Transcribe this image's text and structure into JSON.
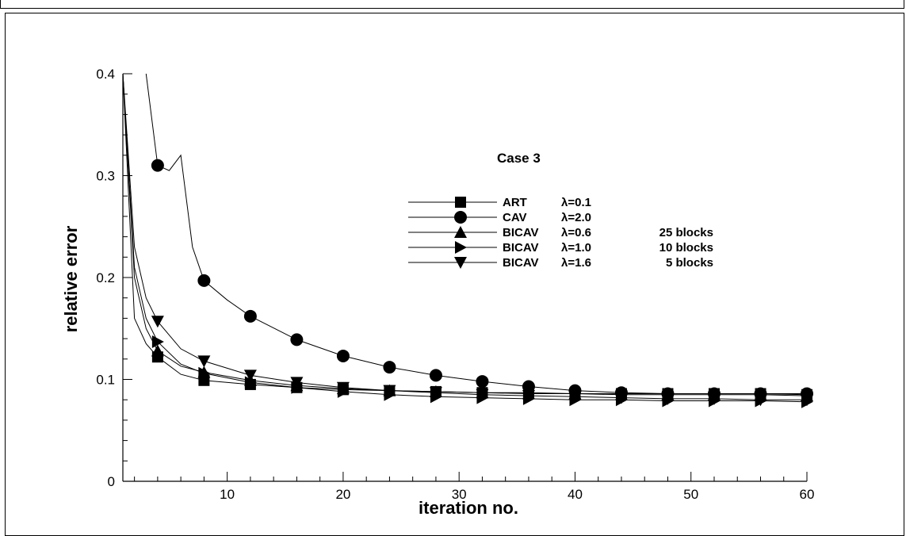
{
  "chart_data": {
    "type": "line",
    "title": "Case 3",
    "xlabel": "iteration no.",
    "ylabel": "relative error",
    "xlim": [
      1,
      60
    ],
    "ylim": [
      0,
      0.4
    ],
    "xticks": [
      "10",
      "20",
      "30",
      "40",
      "50",
      "60"
    ],
    "yticks": [
      "0",
      "0.1",
      "0.2",
      "0.3",
      "0.4"
    ],
    "grid": false,
    "legend_position": "center-right",
    "series": [
      {
        "name": "ART",
        "param": "λ=0.1",
        "blocks": "",
        "marker": "square",
        "x": [
          1,
          2,
          3,
          4,
          6,
          8,
          12,
          16,
          20,
          24,
          28,
          32,
          36,
          40,
          44,
          48,
          52,
          56,
          60
        ],
        "y": [
          0.4,
          0.16,
          0.135,
          0.122,
          0.105,
          0.099,
          0.095,
          0.092,
          0.09,
          0.089,
          0.088,
          0.087,
          0.087,
          0.086,
          0.086,
          0.086,
          0.086,
          0.086,
          0.085
        ]
      },
      {
        "name": "CAV",
        "param": "λ=2.0",
        "blocks": "",
        "marker": "circle",
        "x": [
          3,
          4,
          5,
          6,
          7,
          8,
          10,
          12,
          16,
          20,
          24,
          28,
          32,
          36,
          40,
          44,
          48,
          52,
          56,
          60
        ],
        "y": [
          0.4,
          0.31,
          0.305,
          0.32,
          0.23,
          0.197,
          0.178,
          0.162,
          0.139,
          0.123,
          0.112,
          0.104,
          0.098,
          0.093,
          0.089,
          0.087,
          0.086,
          0.086,
          0.086,
          0.086
        ]
      },
      {
        "name": "BICAV",
        "param": "λ=0.6",
        "blocks": "25 blocks",
        "marker": "triangle-up",
        "x": [
          1,
          2,
          3,
          4,
          6,
          8,
          12,
          16,
          20,
          24,
          28,
          32,
          36,
          40,
          44,
          48,
          52,
          56,
          60
        ],
        "y": [
          0.4,
          0.2,
          0.15,
          0.128,
          0.113,
          0.107,
          0.099,
          0.094,
          0.091,
          0.089,
          0.088,
          0.087,
          0.086,
          0.086,
          0.085,
          0.085,
          0.085,
          0.085,
          0.084
        ]
      },
      {
        "name": "BICAV",
        "param": "λ=1.0",
        "blocks": "10 blocks",
        "marker": "triangle-right",
        "x": [
          1,
          2,
          3,
          4,
          6,
          8,
          12,
          16,
          20,
          24,
          28,
          32,
          36,
          40,
          44,
          48,
          52,
          56,
          60
        ],
        "y": [
          0.4,
          0.21,
          0.16,
          0.137,
          0.115,
          0.106,
          0.097,
          0.092,
          0.088,
          0.085,
          0.083,
          0.082,
          0.081,
          0.08,
          0.08,
          0.079,
          0.079,
          0.079,
          0.078
        ]
      },
      {
        "name": "BICAV",
        "param": "λ=1.6",
        "blocks": "5 blocks",
        "marker": "triangle-down",
        "x": [
          1,
          2,
          3,
          4,
          6,
          8,
          12,
          16,
          20,
          24,
          28,
          32,
          36,
          40,
          44,
          48,
          52,
          56,
          60
        ],
        "y": [
          0.4,
          0.23,
          0.18,
          0.157,
          0.13,
          0.118,
          0.104,
          0.097,
          0.092,
          0.089,
          0.087,
          0.085,
          0.084,
          0.083,
          0.082,
          0.081,
          0.081,
          0.08,
          0.08
        ]
      }
    ]
  }
}
